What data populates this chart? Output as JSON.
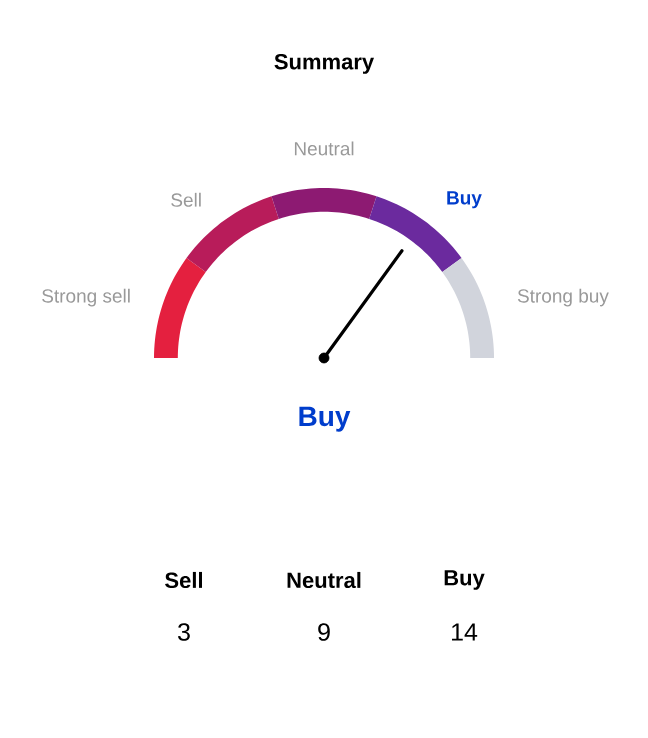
{
  "chart_data": [
    {
      "type": "donut",
      "title": "Summary",
      "categories": [
        "Strong sell",
        "Sell",
        "Neutral",
        "Buy",
        "Strong buy"
      ],
      "values": [
        20,
        20,
        20,
        20,
        20
      ],
      "colors": [
        "#e4203f",
        "#b81c5a",
        "#8d1a72",
        "#6b2a9e",
        "#d1d4dc"
      ],
      "needle": "Buy"
    },
    {
      "type": "other",
      "categories": [
        "Sell",
        "Neutral",
        "Buy"
      ],
      "values": [
        3,
        9,
        14
      ],
      "data_labels": true
    }
  ]
}
